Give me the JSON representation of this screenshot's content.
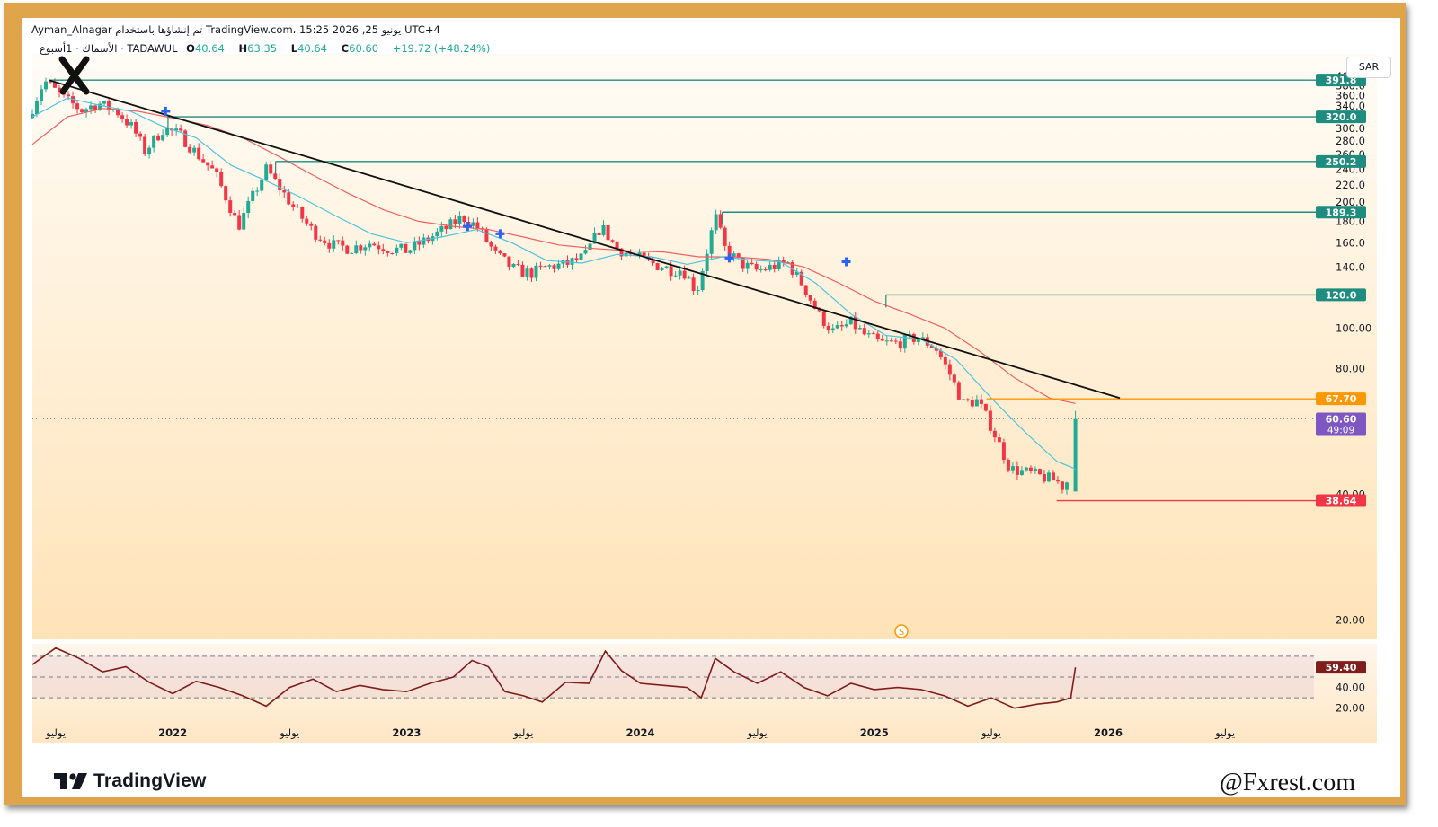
{
  "header": {
    "author": "Ayman_Alnagar",
    "published_line": "تم إنشاؤها باستخدام TradingView.com، 15:25 2026 ,25 يونيو UTC+4",
    "symbol": "الأسماك · 1أسبوع · TADAWUL",
    "open_label": "O",
    "open": "40.64",
    "high_label": "H",
    "high": "63.35",
    "low_label": "L",
    "low": "40.64",
    "close_label": "C",
    "close": "60.60",
    "change": "+19.72 (+48.24%)",
    "currency": "SAR"
  },
  "colors": {
    "up": "#22ab94",
    "down": "#f23645",
    "teal_line": "#1e8c7e",
    "orange": "#ff9800",
    "purple": "#7e57c2",
    "red_label": "#f23645",
    "ema_fast": "#4dc3e0",
    "ema_slow": "#f06060",
    "rsi": "#7f1d1d",
    "rsi_label": "#7f1d1d",
    "bg_top": "#fffcf6",
    "bg_bottom": "#ffe3b8"
  },
  "chart_data": {
    "type": "candlestick",
    "timeframe": "1 week",
    "y_scale": "log",
    "ylim": [
      18,
      410
    ],
    "y_ticks": [
      "400.0",
      "380.0",
      "360.0",
      "340.0",
      "320.0",
      "300.0",
      "280.0",
      "260.0",
      "240.0",
      "220.0",
      "200.0",
      "180.0",
      "160.0",
      "140.0",
      "120.0",
      "100.00",
      "80.00",
      "60.00",
      "40.00",
      "20.00"
    ],
    "x_ticks": [
      {
        "t": 2021.5,
        "label": "يوليو"
      },
      {
        "t": 2022.0,
        "label": "2022"
      },
      {
        "t": 2022.5,
        "label": "يوليو"
      },
      {
        "t": 2023.0,
        "label": "2023"
      },
      {
        "t": 2023.5,
        "label": "يوليو"
      },
      {
        "t": 2024.0,
        "label": "2024"
      },
      {
        "t": 2024.5,
        "label": "يوليو"
      },
      {
        "t": 2025.0,
        "label": "2025"
      },
      {
        "t": 2025.5,
        "label": "يوليو"
      },
      {
        "t": 2026.0,
        "label": "2026"
      },
      {
        "t": 2026.5,
        "label": "يوليو"
      }
    ],
    "xlim": [
      2021.4,
      2026.88
    ],
    "price_path": [
      [
        2021.4,
        318
      ],
      [
        2021.47,
        391
      ],
      [
        2021.55,
        355
      ],
      [
        2021.63,
        332
      ],
      [
        2021.7,
        345
      ],
      [
        2021.78,
        330
      ],
      [
        2021.85,
        300
      ],
      [
        2021.9,
        265
      ],
      [
        2021.98,
        300
      ],
      [
        2022.05,
        290
      ],
      [
        2022.12,
        262
      ],
      [
        2022.2,
        235
      ],
      [
        2022.26,
        198
      ],
      [
        2022.3,
        175
      ],
      [
        2022.35,
        200
      ],
      [
        2022.42,
        240
      ],
      [
        2022.48,
        215
      ],
      [
        2022.55,
        190
      ],
      [
        2022.62,
        170
      ],
      [
        2022.7,
        158
      ],
      [
        2022.78,
        155
      ],
      [
        2022.86,
        160
      ],
      [
        2022.94,
        155
      ],
      [
        2023.02,
        153
      ],
      [
        2023.1,
        162
      ],
      [
        2023.18,
        172
      ],
      [
        2023.26,
        184
      ],
      [
        2023.32,
        175
      ],
      [
        2023.4,
        150
      ],
      [
        2023.48,
        138
      ],
      [
        2023.55,
        135
      ],
      [
        2023.62,
        140
      ],
      [
        2023.7,
        142
      ],
      [
        2023.78,
        148
      ],
      [
        2023.85,
        175
      ],
      [
        2023.92,
        155
      ],
      [
        2024.0,
        148
      ],
      [
        2024.08,
        142
      ],
      [
        2024.15,
        138
      ],
      [
        2024.2,
        138
      ],
      [
        2024.26,
        122
      ],
      [
        2024.3,
        150
      ],
      [
        2024.34,
        185
      ],
      [
        2024.38,
        155
      ],
      [
        2024.45,
        142
      ],
      [
        2024.52,
        137
      ],
      [
        2024.58,
        140
      ],
      [
        2024.65,
        143
      ],
      [
        2024.72,
        125
      ],
      [
        2024.78,
        108
      ],
      [
        2024.84,
        98
      ],
      [
        2024.88,
        100
      ],
      [
        2024.92,
        103
      ],
      [
        2024.98,
        96
      ],
      [
        2025.05,
        92
      ],
      [
        2025.12,
        92
      ],
      [
        2025.2,
        95
      ],
      [
        2025.28,
        90
      ],
      [
        2025.34,
        78
      ],
      [
        2025.4,
        66
      ],
      [
        2025.46,
        67
      ],
      [
        2025.52,
        58
      ],
      [
        2025.6,
        46
      ],
      [
        2025.68,
        45
      ],
      [
        2025.74,
        44
      ],
      [
        2025.8,
        43
      ],
      [
        2025.84,
        41
      ],
      [
        2025.86,
        60.6
      ]
    ],
    "ema_fast_path": [
      [
        2021.4,
        320
      ],
      [
        2021.55,
        355
      ],
      [
        2021.7,
        340
      ],
      [
        2021.82,
        330
      ],
      [
        2021.95,
        305
      ],
      [
        2022.1,
        285
      ],
      [
        2022.25,
        245
      ],
      [
        2022.4,
        225
      ],
      [
        2022.55,
        205
      ],
      [
        2022.7,
        185
      ],
      [
        2022.85,
        168
      ],
      [
        2023.0,
        160
      ],
      [
        2023.15,
        165
      ],
      [
        2023.3,
        172
      ],
      [
        2023.45,
        160
      ],
      [
        2023.6,
        145
      ],
      [
        2023.75,
        143
      ],
      [
        2023.9,
        150
      ],
      [
        2024.05,
        148
      ],
      [
        2024.2,
        142
      ],
      [
        2024.35,
        148
      ],
      [
        2024.5,
        145
      ],
      [
        2024.6,
        144
      ],
      [
        2024.75,
        128
      ],
      [
        2024.9,
        108
      ],
      [
        2025.05,
        96
      ],
      [
        2025.2,
        94
      ],
      [
        2025.35,
        84
      ],
      [
        2025.5,
        68
      ],
      [
        2025.65,
        56
      ],
      [
        2025.78,
        48
      ],
      [
        2025.86,
        46
      ]
    ],
    "ema_slow_path": [
      [
        2021.4,
        275
      ],
      [
        2021.55,
        320
      ],
      [
        2021.7,
        335
      ],
      [
        2021.85,
        330
      ],
      [
        2022.0,
        318
      ],
      [
        2022.15,
        305
      ],
      [
        2022.3,
        285
      ],
      [
        2022.45,
        258
      ],
      [
        2022.6,
        232
      ],
      [
        2022.75,
        210
      ],
      [
        2022.9,
        192
      ],
      [
        2023.05,
        180
      ],
      [
        2023.2,
        175
      ],
      [
        2023.35,
        172
      ],
      [
        2023.5,
        165
      ],
      [
        2023.65,
        158
      ],
      [
        2023.8,
        155
      ],
      [
        2023.95,
        153
      ],
      [
        2024.1,
        152
      ],
      [
        2024.25,
        148
      ],
      [
        2024.4,
        148
      ],
      [
        2024.55,
        146
      ],
      [
        2024.7,
        140
      ],
      [
        2024.85,
        128
      ],
      [
        2025.0,
        116
      ],
      [
        2025.15,
        108
      ],
      [
        2025.3,
        100
      ],
      [
        2025.45,
        88
      ],
      [
        2025.6,
        76
      ],
      [
        2025.75,
        68
      ],
      [
        2025.86,
        66
      ]
    ],
    "horizontal_levels": [
      {
        "price": 391.8,
        "label": "391.8",
        "color": "#1e8c7e",
        "start": 2021.47
      },
      {
        "price": 320.0,
        "label": "320.0",
        "color": "#1e8c7e",
        "start": 2021.98
      },
      {
        "price": 250.2,
        "label": "250.2",
        "color": "#1e8c7e",
        "start": 2022.44
      },
      {
        "price": 189.3,
        "label": "189.3",
        "color": "#1e8c7e",
        "start": 2024.35
      },
      {
        "price": 120.0,
        "label": "120.0",
        "color": "#1e8c7e",
        "start": 2025.05
      },
      {
        "price": 67.7,
        "label": "67.70",
        "color": "#ff9800",
        "start": 2025.48
      },
      {
        "price": 38.64,
        "label": "38.64",
        "color": "#f23645",
        "start": 2025.78
      }
    ],
    "current_price": {
      "price": 60.6,
      "label": "60.60",
      "countdown": "49:09"
    },
    "trendline": {
      "from": [
        2021.47,
        391.8
      ],
      "to": [
        2026.05,
        68
      ]
    },
    "markers": [
      [
        2021.97,
        330
      ],
      [
        2023.26,
        175
      ],
      [
        2023.4,
        168
      ],
      [
        2024.38,
        147
      ],
      [
        2024.88,
        144
      ]
    ],
    "rsi": {
      "value_label": "59.40",
      "ylim": [
        12,
        82
      ],
      "levels": [
        70,
        50,
        30
      ],
      "ticks": [
        "40.00",
        "20.00"
      ],
      "path": [
        [
          2021.4,
          62
        ],
        [
          2021.5,
          78
        ],
        [
          2021.6,
          68
        ],
        [
          2021.7,
          55
        ],
        [
          2021.8,
          60
        ],
        [
          2021.9,
          45
        ],
        [
          2022.0,
          34
        ],
        [
          2022.1,
          46
        ],
        [
          2022.2,
          40
        ],
        [
          2022.3,
          32
        ],
        [
          2022.4,
          22
        ],
        [
          2022.5,
          40
        ],
        [
          2022.6,
          48
        ],
        [
          2022.7,
          36
        ],
        [
          2022.8,
          42
        ],
        [
          2022.9,
          38
        ],
        [
          2023.0,
          36
        ],
        [
          2023.1,
          44
        ],
        [
          2023.2,
          50
        ],
        [
          2023.28,
          66
        ],
        [
          2023.35,
          60
        ],
        [
          2023.42,
          36
        ],
        [
          2023.5,
          32
        ],
        [
          2023.58,
          26
        ],
        [
          2023.68,
          45
        ],
        [
          2023.78,
          44
        ],
        [
          2023.85,
          75
        ],
        [
          2023.92,
          56
        ],
        [
          2024.0,
          44
        ],
        [
          2024.1,
          42
        ],
        [
          2024.2,
          40
        ],
        [
          2024.26,
          30
        ],
        [
          2024.32,
          68
        ],
        [
          2024.4,
          55
        ],
        [
          2024.5,
          44
        ],
        [
          2024.6,
          55
        ],
        [
          2024.7,
          40
        ],
        [
          2024.8,
          32
        ],
        [
          2024.9,
          44
        ],
        [
          2025.0,
          38
        ],
        [
          2025.1,
          40
        ],
        [
          2025.2,
          38
        ],
        [
          2025.3,
          32
        ],
        [
          2025.4,
          22
        ],
        [
          2025.5,
          30
        ],
        [
          2025.6,
          20
        ],
        [
          2025.7,
          24
        ],
        [
          2025.78,
          26
        ],
        [
          2025.84,
          30
        ],
        [
          2025.86,
          59.4
        ]
      ]
    }
  },
  "footer": {
    "brand": "TradingView",
    "watermark": "@Fxrest.com"
  }
}
